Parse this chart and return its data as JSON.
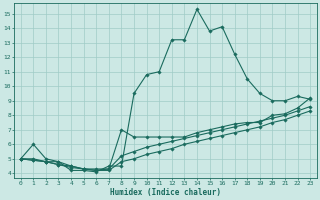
{
  "xlabel": "Humidex (Indice chaleur)",
  "ylabel": "",
  "xlim": [
    -0.5,
    23.5
  ],
  "ylim": [
    3.7,
    15.7
  ],
  "yticks": [
    4,
    5,
    6,
    7,
    8,
    9,
    10,
    11,
    12,
    13,
    14,
    15
  ],
  "xticks": [
    0,
    1,
    2,
    3,
    4,
    5,
    6,
    7,
    8,
    9,
    10,
    11,
    12,
    13,
    14,
    15,
    16,
    17,
    18,
    19,
    20,
    21,
    22,
    23
  ],
  "bg_color": "#cce8e4",
  "grid_color": "#a0ccc7",
  "line_color": "#1a6b5e",
  "line1_y": [
    5.0,
    6.0,
    5.0,
    4.8,
    4.2,
    4.2,
    4.1,
    4.5,
    4.5,
    9.5,
    10.8,
    11.0,
    13.2,
    13.2,
    15.3,
    13.8,
    14.1,
    12.2,
    10.5,
    9.5,
    9.0,
    9.0,
    9.3,
    9.1
  ],
  "line2_y": [
    5.0,
    4.9,
    4.8,
    4.8,
    4.5,
    4.3,
    4.2,
    4.3,
    7.0,
    6.5,
    6.5,
    6.5,
    6.5,
    6.5,
    6.8,
    7.0,
    7.2,
    7.4,
    7.5,
    7.5,
    8.0,
    8.1,
    8.5,
    9.2
  ],
  "line3_y": [
    5.0,
    5.0,
    4.8,
    4.6,
    4.5,
    4.3,
    4.3,
    4.3,
    5.2,
    5.5,
    5.8,
    6.0,
    6.2,
    6.4,
    6.6,
    6.8,
    7.0,
    7.2,
    7.4,
    7.6,
    7.8,
    8.0,
    8.3,
    8.6
  ],
  "line4_y": [
    5.0,
    4.9,
    4.8,
    4.6,
    4.4,
    4.3,
    4.2,
    4.2,
    4.8,
    5.0,
    5.3,
    5.5,
    5.7,
    6.0,
    6.2,
    6.4,
    6.6,
    6.8,
    7.0,
    7.2,
    7.5,
    7.7,
    8.0,
    8.3
  ]
}
